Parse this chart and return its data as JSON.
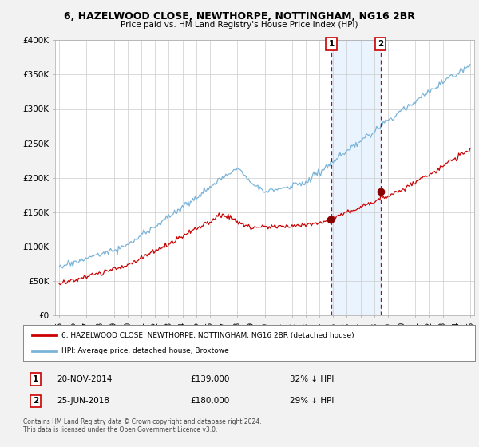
{
  "title": "6, HAZELWOOD CLOSE, NEWTHORPE, NOTTINGHAM, NG16 2BR",
  "subtitle": "Price paid vs. HM Land Registry's House Price Index (HPI)",
  "hpi_label": "HPI: Average price, detached house, Broxtowe",
  "property_label": "6, HAZELWOOD CLOSE, NEWTHORPE, NOTTINGHAM, NG16 2BR (detached house)",
  "transaction1_date": "20-NOV-2014",
  "transaction1_price": 139000,
  "transaction1_hpi": "32% ↓ HPI",
  "transaction2_date": "25-JUN-2018",
  "transaction2_price": 180000,
  "transaction2_hpi": "29% ↓ HPI",
  "footnote": "Contains HM Land Registry data © Crown copyright and database right 2024.\nThis data is licensed under the Open Government Licence v3.0.",
  "hpi_color": "#7ab4d8",
  "property_color": "#cc0000",
  "background_color": "#f2f2f2",
  "plot_bg_color": "#ffffff",
  "transaction_box_color": "#cc0000",
  "highlight_fill": "#ddeeff",
  "ylim": [
    0,
    400000
  ],
  "yticks": [
    0,
    50000,
    100000,
    150000,
    200000,
    250000,
    300000,
    350000,
    400000
  ],
  "t1_year": 2014.87,
  "t2_year": 2018.46,
  "t1_price": 139000,
  "t2_price": 180000
}
